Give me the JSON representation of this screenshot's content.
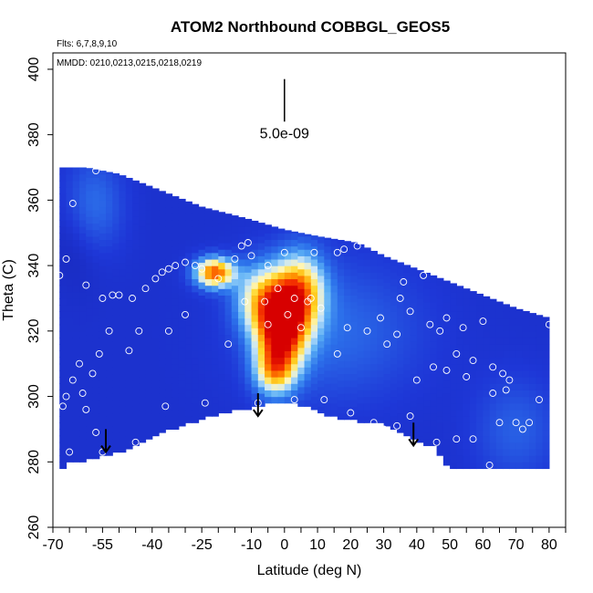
{
  "chart_data": {
    "type": "heatmap",
    "title": "ATOM2 Northbound COBBGL_GEOS5",
    "flights_note": "Flts: 6,7,8,9,10",
    "dates_note": "MMDD: 0210,0213,0215,0218,0219",
    "xlabel": "Latitude (deg N)",
    "ylabel": "Theta (C)",
    "xlim": [
      -70,
      85
    ],
    "ylim": [
      260,
      405
    ],
    "x_ticks": [
      -70,
      -55,
      -40,
      -25,
      -10,
      0,
      10,
      20,
      30,
      40,
      50,
      60,
      70,
      80
    ],
    "x_tick_labels": [
      "-70",
      "-55",
      "-40",
      "-25",
      "-10",
      "0",
      "10",
      "20",
      "30",
      "40",
      "50",
      "60",
      "70",
      "80"
    ],
    "y_ticks": [
      260,
      280,
      300,
      320,
      340,
      360,
      380,
      400
    ],
    "y_tick_labels": [
      "260",
      "280",
      "300",
      "320",
      "340",
      "360",
      "380",
      "400"
    ],
    "scale_bar_label": "5.0e-09",
    "scale_bar": {
      "x": 0,
      "y_from": 384,
      "y_to": 397
    },
    "colormap": [
      "#ffffff",
      "#2a3fd6",
      "#5fa8f5",
      "#fff2b0",
      "#ffd000",
      "#ff7a00",
      "#e00000"
    ],
    "top_boundary": [
      [
        -65,
        370
      ],
      [
        -60,
        370
      ],
      [
        -50,
        368
      ],
      [
        -40,
        364
      ],
      [
        -25,
        358
      ],
      [
        -10,
        354
      ],
      [
        0,
        351
      ],
      [
        10,
        349
      ],
      [
        22,
        347
      ],
      [
        30,
        343
      ],
      [
        45,
        337
      ],
      [
        60,
        331
      ],
      [
        70,
        327
      ],
      [
        80,
        324
      ]
    ],
    "bottom_boundary": [
      [
        -68,
        278
      ],
      [
        -65,
        280
      ],
      [
        -55,
        282
      ],
      [
        -45,
        285
      ],
      [
        -35,
        290
      ],
      [
        -20,
        295
      ],
      [
        -5,
        298
      ],
      [
        0,
        299
      ],
      [
        8,
        297
      ],
      [
        15,
        294
      ],
      [
        30,
        292
      ],
      [
        45,
        285
      ],
      [
        50,
        278
      ],
      [
        80,
        278
      ]
    ],
    "hotspots": [
      {
        "lat": -1,
        "theta": 322,
        "amp": 1.0,
        "sx": 5,
        "sy": 9
      },
      {
        "lat": 5,
        "theta": 332,
        "amp": 0.55,
        "sx": 5,
        "sy": 8
      },
      {
        "lat": -21,
        "theta": 338,
        "amp": 0.75,
        "sx": 4,
        "sy": 3
      },
      {
        "lat": -8,
        "theta": 330,
        "amp": 0.35,
        "sx": 5,
        "sy": 7
      },
      {
        "lat": -3,
        "theta": 308,
        "amp": 0.45,
        "sx": 4,
        "sy": 5
      },
      {
        "lat": -58,
        "theta": 358,
        "amp": 0.15,
        "sx": 6,
        "sy": 10
      }
    ],
    "background_amp": 0.08,
    "arrows_lat": [
      -54,
      -8,
      39
    ],
    "arrows_theta": [
      [
        290,
        283
      ],
      [
        301,
        294
      ],
      [
        292,
        285
      ]
    ],
    "sample_points": [
      [
        -66,
        342
      ],
      [
        -68,
        337
      ],
      [
        -64,
        359
      ],
      [
        -57,
        369
      ],
      [
        -53,
        370
      ],
      [
        -60,
        334
      ],
      [
        -55,
        330
      ],
      [
        -52,
        331
      ],
      [
        -50,
        331
      ],
      [
        -53,
        320
      ],
      [
        -46,
        330
      ],
      [
        -44,
        320
      ],
      [
        -47,
        314
      ],
      [
        -42,
        333
      ],
      [
        -39,
        336
      ],
      [
        -37,
        338
      ],
      [
        -35,
        339
      ],
      [
        -33,
        340
      ],
      [
        -30,
        341
      ],
      [
        -27,
        340
      ],
      [
        -25,
        339
      ],
      [
        -20,
        336
      ],
      [
        -15,
        342
      ],
      [
        -13,
        346
      ],
      [
        -11,
        347
      ],
      [
        -30,
        325
      ],
      [
        -35,
        320
      ],
      [
        -62,
        310
      ],
      [
        -64,
        305
      ],
      [
        -66,
        300
      ],
      [
        -67,
        297
      ],
      [
        -60,
        296
      ],
      [
        -58,
        307
      ],
      [
        -56,
        313
      ],
      [
        -61,
        301
      ],
      [
        -55,
        283
      ],
      [
        -57,
        289
      ],
      [
        -65,
        283
      ],
      [
        -45,
        286
      ],
      [
        -36,
        297
      ],
      [
        -24,
        298
      ],
      [
        -17,
        316
      ],
      [
        -12,
        329
      ],
      [
        -6,
        329
      ],
      [
        -5,
        322
      ],
      [
        -2,
        333
      ],
      [
        1,
        325
      ],
      [
        3,
        330
      ],
      [
        5,
        321
      ],
      [
        7,
        329
      ],
      [
        9,
        344
      ],
      [
        0,
        344
      ],
      [
        -5,
        340
      ],
      [
        -10,
        343
      ],
      [
        8,
        330
      ],
      [
        11,
        327
      ],
      [
        16,
        344
      ],
      [
        18,
        345
      ],
      [
        22,
        346
      ],
      [
        25,
        320
      ],
      [
        29,
        324
      ],
      [
        31,
        316
      ],
      [
        34,
        319
      ],
      [
        36,
        335
      ],
      [
        38,
        326
      ],
      [
        44,
        322
      ],
      [
        42,
        337
      ],
      [
        47,
        320
      ],
      [
        49,
        324
      ],
      [
        54,
        321
      ],
      [
        55,
        306
      ],
      [
        52,
        313
      ],
      [
        57,
        311
      ],
      [
        60,
        323
      ],
      [
        63,
        309
      ],
      [
        66,
        307
      ],
      [
        68,
        305
      ],
      [
        67,
        302
      ],
      [
        70,
        292
      ],
      [
        72,
        290
      ],
      [
        74,
        292
      ],
      [
        77,
        299
      ],
      [
        80,
        322
      ],
      [
        65,
        292
      ],
      [
        63,
        301
      ],
      [
        45,
        309
      ],
      [
        49,
        308
      ],
      [
        38,
        294
      ],
      [
        34,
        291
      ],
      [
        27,
        292
      ],
      [
        20,
        295
      ],
      [
        12,
        299
      ],
      [
        3,
        299
      ],
      [
        -8,
        298
      ],
      [
        57,
        287
      ],
      [
        62,
        279
      ],
      [
        30,
        290
      ],
      [
        46,
        286
      ],
      [
        52,
        287
      ],
      [
        40,
        305
      ],
      [
        35,
        330
      ],
      [
        16,
        313
      ],
      [
        19,
        321
      ]
    ]
  }
}
